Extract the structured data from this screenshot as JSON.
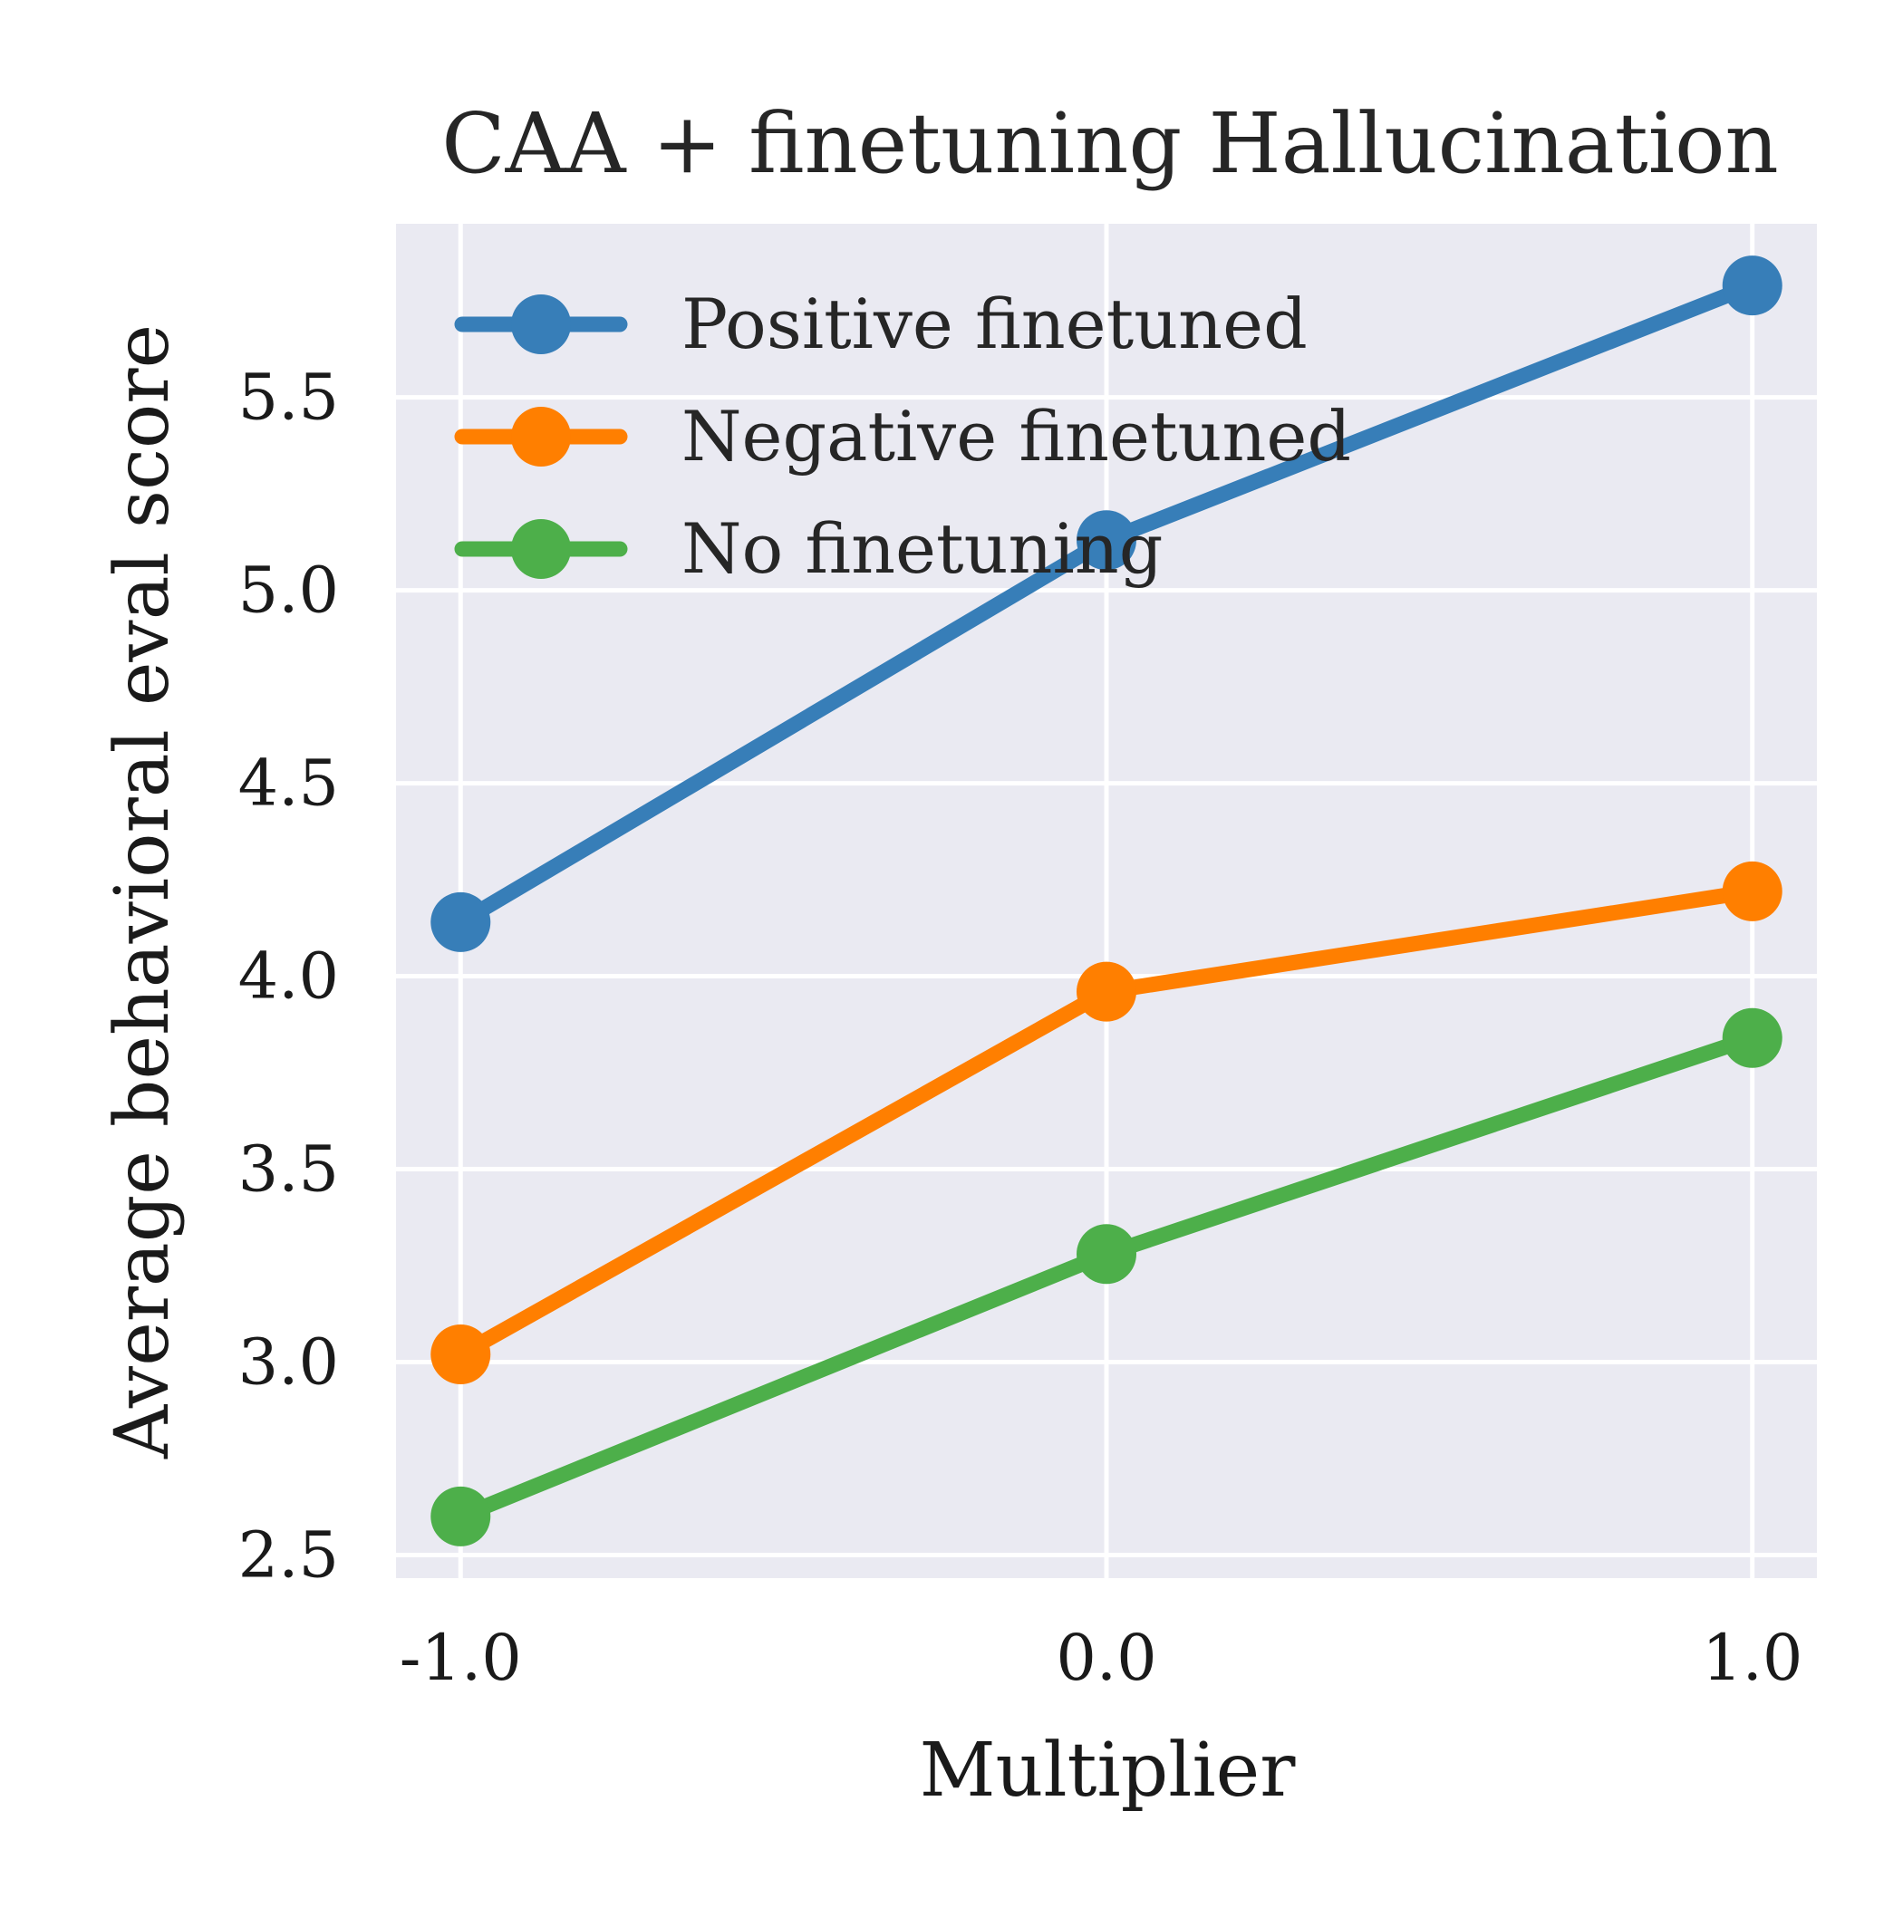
{
  "chart_data": {
    "type": "line",
    "title": "CAA + finetuning Hallucination",
    "xlabel": "Multiplier",
    "ylabel": "Average behavioral eval score",
    "x": [
      -1.0,
      0.0,
      1.0
    ],
    "x_tick_labels": [
      "-1.0",
      "0.0",
      "1.0"
    ],
    "y_ticks": [
      2.5,
      3.0,
      3.5,
      4.0,
      4.5,
      5.0,
      5.5
    ],
    "y_tick_labels": [
      "2.5",
      "3.0",
      "3.5",
      "4.0",
      "4.5",
      "5.0",
      "5.5"
    ],
    "xlim": [
      -1.1,
      1.1
    ],
    "ylim": [
      2.44,
      5.95
    ],
    "grid": true,
    "legend_position": "top-left",
    "background_color": "#eaeaf2",
    "grid_color": "#ffffff",
    "series": [
      {
        "name": "Positive finetuned",
        "color": "#377eb8",
        "values": [
          4.14,
          5.13,
          5.79
        ]
      },
      {
        "name": "Negative finetuned",
        "color": "#ff7f00",
        "values": [
          3.02,
          3.96,
          4.22
        ]
      },
      {
        "name": "No finetuning",
        "color": "#4daf4a",
        "values": [
          2.6,
          3.28,
          3.84
        ]
      }
    ]
  }
}
